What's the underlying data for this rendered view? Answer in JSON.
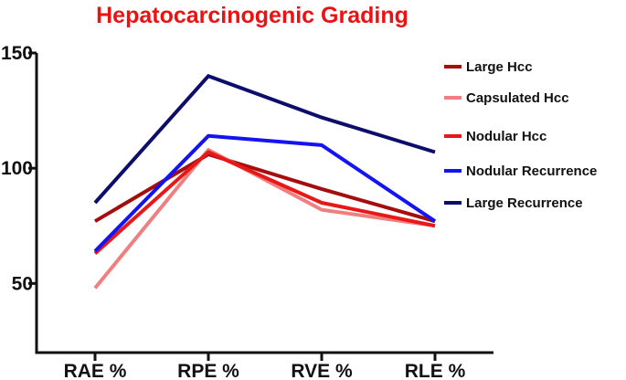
{
  "chart_data": {
    "type": "line",
    "title": "Hepatocarcinogenic Grading",
    "title_color": "#ee1111",
    "categories": [
      "RAE %",
      "RPE %",
      "RVE %",
      "RLE %"
    ],
    "xlabel": "",
    "ylabel": "",
    "ylim": [
      20,
      150
    ],
    "yticks": [
      50,
      100,
      150
    ],
    "grid": false,
    "legend_position": "top-right",
    "series": [
      {
        "name": "Large Hcc",
        "color": "#a50e0e",
        "values": [
          77,
          106,
          91,
          77
        ]
      },
      {
        "name": "Capsulated Hcc",
        "color": "#f08080",
        "values": [
          48,
          108,
          82,
          75
        ]
      },
      {
        "name": "Nodular Hcc",
        "color": "#e81818",
        "values": [
          63,
          107,
          85,
          75
        ]
      },
      {
        "name": "Nodular Recurrence",
        "color": "#1414f0",
        "values": [
          64,
          114,
          110,
          77
        ]
      },
      {
        "name": "Large Recurrence",
        "color": "#0d0d6b",
        "values": [
          85,
          140,
          122,
          107
        ]
      }
    ]
  }
}
